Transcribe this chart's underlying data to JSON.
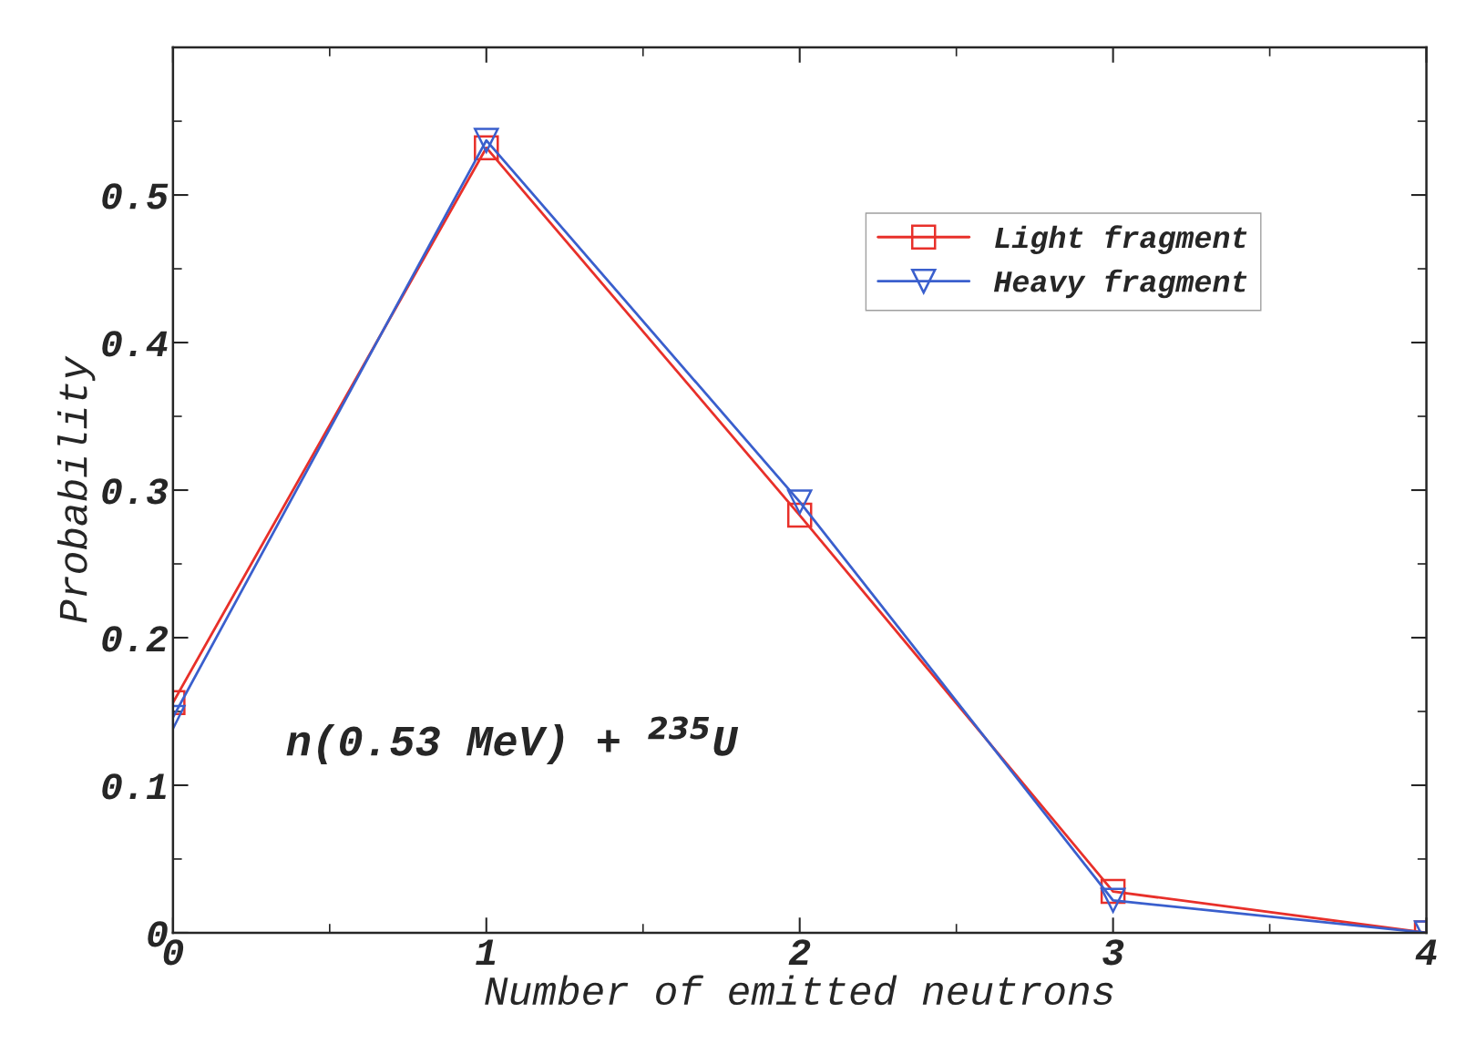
{
  "chart_data": {
    "type": "line",
    "xlabel": "Number of emitted neutrons",
    "ylabel": "Probability",
    "x": [
      0,
      1,
      2,
      3,
      4
    ],
    "series": [
      {
        "name": "Light fragment",
        "color": "#e8302a",
        "marker": "square",
        "values": [
          0.156,
          0.532,
          0.283,
          0.028,
          0
        ]
      },
      {
        "name": "Heavy fragment",
        "color": "#3a5fcd",
        "marker": "triangle",
        "values": [
          0.146,
          0.537,
          0.292,
          0.022,
          0
        ]
      }
    ],
    "xlim": [
      0,
      4
    ],
    "xticks": [
      0,
      1,
      2,
      3,
      4
    ],
    "ylim": [
      0,
      0.6
    ],
    "yticks": [
      0,
      0.1,
      0.2,
      0.3,
      0.4,
      0.5
    ],
    "annotations": [
      "n(0.53 MeV) + $^{235}$U"
    ],
    "legend": "top right",
    "grid": false,
    "line_style": "solid"
  }
}
